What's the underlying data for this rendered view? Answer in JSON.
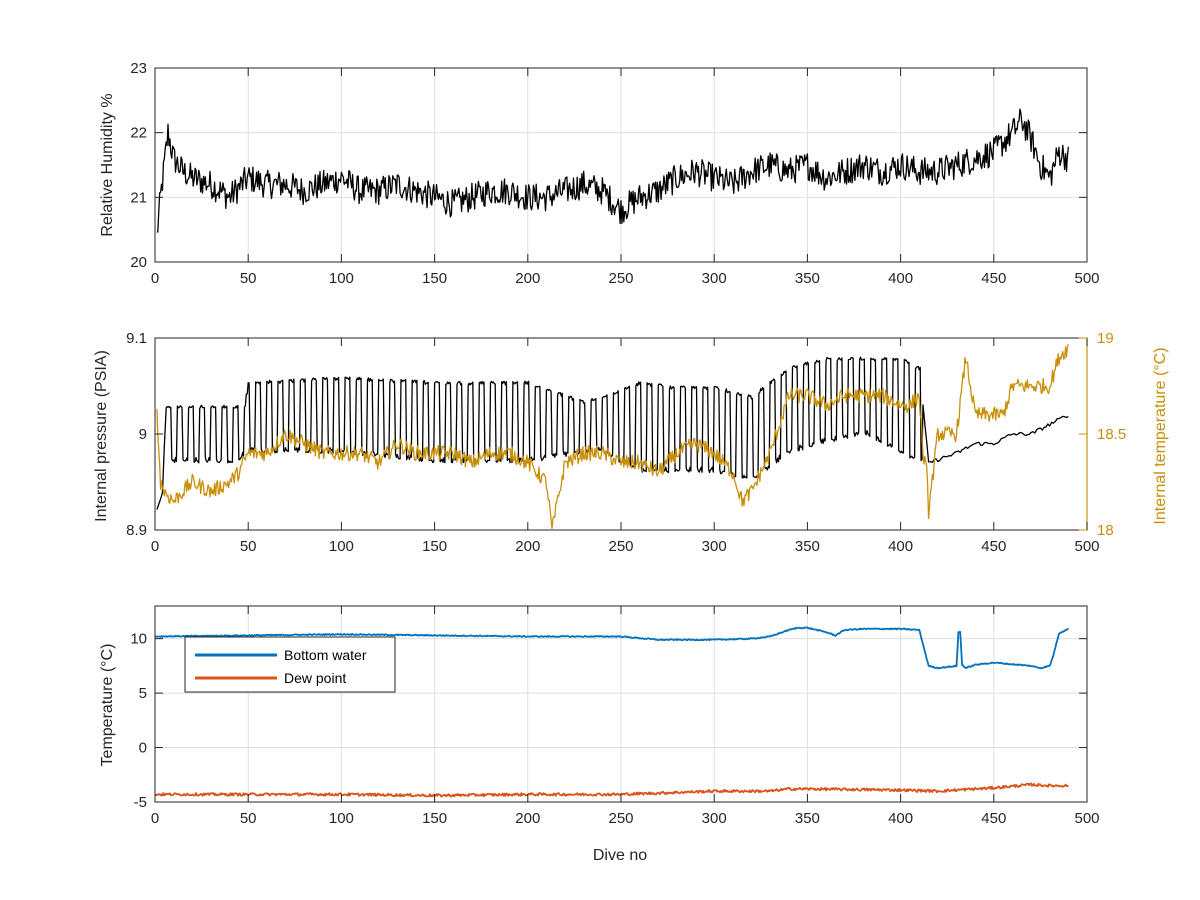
{
  "chart_data": [
    {
      "type": "line",
      "x_range": [
        0,
        500
      ],
      "ylim": [
        20,
        23
      ],
      "x_ticks": [
        "0",
        "50",
        "100",
        "150",
        "200",
        "250",
        "300",
        "350",
        "400",
        "450",
        "500"
      ],
      "y_ticks": [
        "20",
        "21",
        "22",
        "23"
      ],
      "xlabel": "",
      "ylabel": "Relative Humidity %",
      "grid": true,
      "series": [
        {
          "color": "#000000",
          "x": [
            1,
            3,
            5,
            7,
            10,
            15,
            20,
            30,
            40,
            50,
            60,
            70,
            80,
            90,
            100,
            110,
            120,
            130,
            140,
            150,
            160,
            170,
            180,
            190,
            200,
            210,
            220,
            230,
            240,
            250,
            260,
            270,
            280,
            290,
            300,
            310,
            320,
            330,
            340,
            350,
            360,
            370,
            380,
            390,
            400,
            410,
            420,
            430,
            440,
            450,
            460,
            465,
            470,
            475,
            480,
            485,
            490
          ],
          "values": [
            20.4,
            21.0,
            21.5,
            22.0,
            21.6,
            21.4,
            21.3,
            21.2,
            21.0,
            21.3,
            21.2,
            21.2,
            21.1,
            21.2,
            21.3,
            21.1,
            21.1,
            21.2,
            21.1,
            21.0,
            20.9,
            21.0,
            21.1,
            21.1,
            21.0,
            21.0,
            21.1,
            21.2,
            21.1,
            20.8,
            21.0,
            21.1,
            21.3,
            21.4,
            21.3,
            21.2,
            21.4,
            21.5,
            21.4,
            21.5,
            21.3,
            21.4,
            21.5,
            21.4,
            21.5,
            21.4,
            21.4,
            21.5,
            21.6,
            21.7,
            22.0,
            22.2,
            21.9,
            21.5,
            21.3,
            21.7,
            21.6
          ],
          "noise": 0.22
        }
      ]
    },
    {
      "type": "line",
      "x_range": [
        0,
        500
      ],
      "ylim": [
        8.9,
        9.1
      ],
      "y2lim": [
        18,
        19
      ],
      "x_ticks": [
        "0",
        "50",
        "100",
        "150",
        "200",
        "250",
        "300",
        "350",
        "400",
        "450",
        "500"
      ],
      "y_ticks": [
        "8.9",
        "9",
        "9.1"
      ],
      "y2_ticks": [
        "18",
        "18.5",
        "19"
      ],
      "xlabel": "",
      "ylabel": "Internal pressure (PSIA)",
      "y2label": "Internal temperature (°C)",
      "grid": false,
      "series": [
        {
          "axis": "left",
          "color": "#000000",
          "x": [
            1,
            4,
            6,
            45,
            48,
            50,
            100,
            150,
            200,
            230,
            240,
            260,
            280,
            300,
            320,
            340,
            360,
            380,
            400,
            410,
            415,
            430,
            440,
            450,
            460,
            470,
            480,
            490
          ],
          "top": [
            8.92,
            8.94,
            9.03,
            9.03,
            9.03,
            9.055,
            9.06,
            9.055,
            9.055,
            9.035,
            9.04,
            9.055,
            9.05,
            9.05,
            9.04,
            9.07,
            9.08,
            9.08,
            9.08,
            9.07,
            8.97,
            8.98,
            8.99,
            8.99,
            9.0,
            9.0,
            9.01,
            9.02
          ],
          "bottom": [
            8.92,
            8.93,
            8.97,
            8.97,
            8.98,
            8.98,
            8.98,
            8.97,
            8.97,
            8.98,
            8.98,
            8.96,
            8.96,
            8.96,
            8.95,
            8.98,
            8.99,
            9.0,
            8.98,
            8.97,
            8.97,
            8.98,
            8.99,
            8.99,
            9.0,
            9.0,
            9.01,
            9.02
          ],
          "oscillate_until": 412
        },
        {
          "axis": "right",
          "color": "#C8900A",
          "x": [
            1,
            3,
            5,
            10,
            20,
            30,
            40,
            45,
            50,
            60,
            70,
            80,
            90,
            100,
            110,
            120,
            130,
            140,
            150,
            160,
            170,
            180,
            190,
            200,
            210,
            213,
            220,
            230,
            240,
            250,
            260,
            270,
            280,
            290,
            300,
            310,
            315,
            320,
            330,
            340,
            350,
            360,
            370,
            380,
            390,
            400,
            405,
            410,
            412,
            414,
            415,
            420,
            430,
            435,
            440,
            450,
            455,
            460,
            470,
            480,
            485,
            490
          ],
          "values": [
            18.6,
            18.25,
            18.2,
            18.15,
            18.25,
            18.2,
            18.25,
            18.3,
            18.4,
            18.4,
            18.5,
            18.45,
            18.4,
            18.4,
            18.4,
            18.35,
            18.45,
            18.4,
            18.4,
            18.4,
            18.35,
            18.4,
            18.4,
            18.35,
            18.25,
            18.0,
            18.35,
            18.4,
            18.4,
            18.35,
            18.35,
            18.3,
            18.4,
            18.45,
            18.4,
            18.3,
            18.15,
            18.2,
            18.4,
            18.7,
            18.7,
            18.65,
            18.7,
            18.7,
            18.7,
            18.65,
            18.65,
            18.7,
            18.4,
            18.3,
            18.1,
            18.5,
            18.5,
            18.9,
            18.6,
            18.6,
            18.6,
            18.75,
            18.75,
            18.75,
            18.9,
            18.95
          ],
          "noise": 0.04
        }
      ]
    },
    {
      "type": "line",
      "x_range": [
        0,
        500
      ],
      "ylim": [
        -5,
        13
      ],
      "x_ticks": [
        "0",
        "50",
        "100",
        "150",
        "200",
        "250",
        "300",
        "350",
        "400",
        "450",
        "500"
      ],
      "y_ticks": [
        "-5",
        "0",
        "5",
        "10"
      ],
      "xlabel": "Dive no",
      "ylabel": "Temperature (°C)",
      "grid": true,
      "legend": "top-left",
      "series": [
        {
          "name": "Bottom water",
          "color": "#0072BD",
          "x": [
            0,
            50,
            100,
            150,
            200,
            250,
            270,
            300,
            320,
            330,
            340,
            345,
            350,
            360,
            365,
            370,
            380,
            400,
            410,
            412,
            415,
            420,
            430,
            431,
            432,
            433,
            435,
            440,
            450,
            470,
            475,
            480,
            482,
            485,
            490
          ],
          "values": [
            10.2,
            10.3,
            10.4,
            10.3,
            10.2,
            10.2,
            9.9,
            9.9,
            10.0,
            10.2,
            10.8,
            11.0,
            11.0,
            10.6,
            10.3,
            10.8,
            10.9,
            10.9,
            10.8,
            9.5,
            7.5,
            7.3,
            7.5,
            10.6,
            10.6,
            7.6,
            7.3,
            7.6,
            7.8,
            7.5,
            7.3,
            7.5,
            8.5,
            10.5,
            10.9
          ],
          "noise": 0.05
        },
        {
          "name": "Dew point",
          "color": "#D95319",
          "x": [
            0,
            50,
            100,
            150,
            200,
            250,
            300,
            330,
            340,
            350,
            400,
            420,
            450,
            470,
            480,
            490
          ],
          "values": [
            -4.3,
            -4.3,
            -4.3,
            -4.4,
            -4.3,
            -4.3,
            -4.0,
            -4.0,
            -3.8,
            -3.8,
            -3.9,
            -4.0,
            -3.7,
            -3.4,
            -3.5,
            -3.5
          ],
          "noise": 0.12
        }
      ]
    }
  ]
}
